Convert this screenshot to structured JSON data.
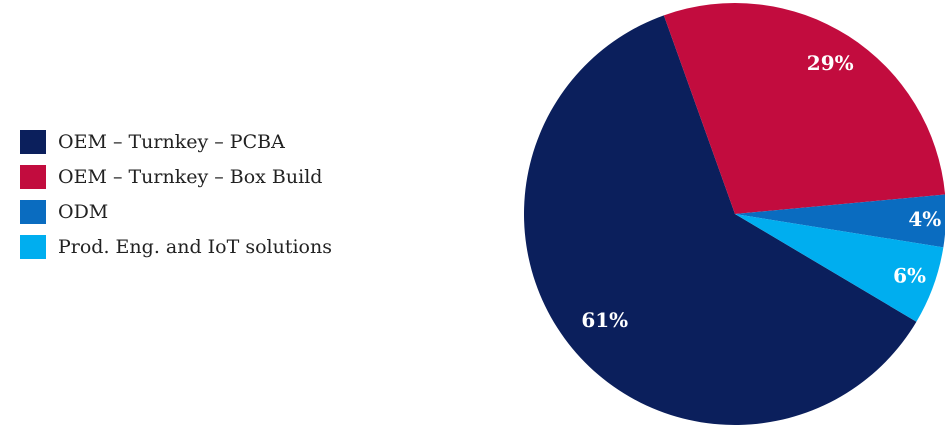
{
  "chart_data": {
    "type": "pie",
    "categories": [
      "OEM – Turnkey – PCBA",
      "OEM – Turnkey – Box Build",
      "ODM",
      "Prod. Eng. and IoT solutions"
    ],
    "values": [
      61,
      29,
      4,
      6
    ],
    "value_labels": [
      "61%",
      "29%",
      "4%",
      "6%"
    ],
    "colors": [
      "#0b1f5c",
      "#c20c3e",
      "#0a6cc0",
      "#00aeef"
    ],
    "legend": "left"
  }
}
